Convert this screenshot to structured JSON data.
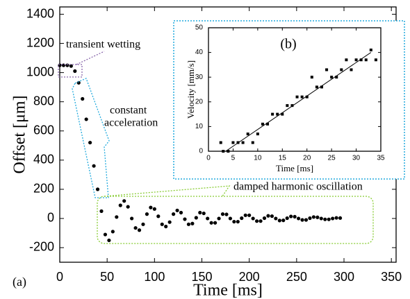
{
  "chart_data": [
    {
      "type": "scatter",
      "x_label": "Time [ms]",
      "y_label": "Offset [μm]",
      "annotations": [
        "transient wetting",
        "constant",
        "acceleration",
        "damped harmonic oscillation",
        "(a)"
      ],
      "xlim": [
        0,
        355
      ],
      "ylim": [
        -300,
        1450
      ],
      "xticks": [
        0,
        50,
        100,
        150,
        200,
        250,
        300,
        350
      ],
      "yticks": [
        -200,
        0,
        200,
        400,
        600,
        800,
        1000,
        1200,
        1400
      ],
      "series": [
        {
          "color": "#000000",
          "marker": "circle",
          "x": [
            0,
            4,
            8,
            12,
            16,
            20,
            24,
            28,
            32,
            36,
            40,
            44,
            48,
            52,
            56,
            60,
            64,
            68,
            72,
            76,
            80,
            84,
            88,
            92,
            96,
            100,
            104,
            108,
            112,
            116,
            120,
            124,
            128,
            132,
            136,
            140,
            144,
            148,
            152,
            156,
            160,
            164,
            168,
            172,
            176,
            180,
            184,
            188,
            192,
            196,
            200,
            204,
            208,
            212,
            216,
            220,
            224,
            228,
            232,
            236,
            240,
            244,
            248,
            252,
            256,
            260,
            264,
            268,
            272,
            276,
            280,
            284,
            288,
            292,
            296
          ],
          "values": [
            1050,
            1050,
            1050,
            1045,
            1010,
            930,
            820,
            680,
            520,
            360,
            200,
            50,
            -110,
            -150,
            -90,
            10,
            90,
            120,
            80,
            0,
            -65,
            -80,
            -40,
            30,
            75,
            65,
            15,
            -40,
            -55,
            -25,
            30,
            55,
            40,
            -5,
            -40,
            -35,
            5,
            40,
            35,
            0,
            -30,
            -30,
            0,
            30,
            28,
            0,
            -22,
            -22,
            2,
            22,
            22,
            0,
            -18,
            -18,
            2,
            18,
            16,
            0,
            -14,
            -13,
            2,
            14,
            12,
            0,
            -10,
            -10,
            2,
            10,
            8,
            0,
            -6,
            -6,
            0,
            4,
            3
          ]
        }
      ]
    },
    {
      "type": "scatter",
      "x_label": "Time [ms]",
      "y_label": "Velocity [mm/s]",
      "annotations": [
        "(b)"
      ],
      "xlim": [
        0,
        35
      ],
      "ylim": [
        0,
        50
      ],
      "xticks": [
        0,
        5,
        10,
        15,
        20,
        25,
        30,
        35
      ],
      "yticks": [
        0,
        10,
        20,
        30,
        40,
        50
      ],
      "series": [
        {
          "color": "#000000",
          "marker": "square",
          "x": [
            2.5,
            3,
            4,
            5,
            6,
            7,
            8,
            9,
            10,
            11,
            12,
            13,
            14,
            15,
            16,
            17,
            18,
            19,
            20,
            21,
            22,
            23,
            24,
            25,
            26,
            27,
            28,
            29,
            30,
            31,
            32,
            33,
            34
          ],
          "values": [
            3.5,
            0,
            0,
            3.5,
            3.5,
            3.5,
            7,
            3.5,
            7,
            11,
            11,
            15,
            15,
            15,
            18.5,
            18.5,
            22,
            22,
            22,
            30,
            26,
            26,
            33,
            30,
            30,
            33,
            37,
            33,
            37,
            37,
            37,
            41,
            37
          ]
        },
        {
          "color": "#000000",
          "marker": "line",
          "x": [
            3.5,
            33
          ],
          "values": [
            0,
            40
          ]
        }
      ]
    }
  ]
}
